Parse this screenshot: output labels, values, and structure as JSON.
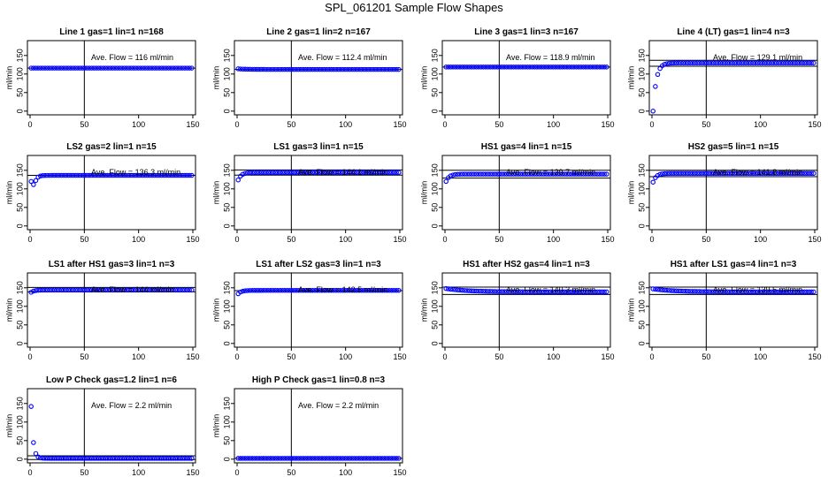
{
  "title": "SPL_061201  Sample Flow Shapes",
  "colors": {
    "points": "#0000ff",
    "axis": "#000000"
  },
  "chart_data": [
    {
      "type": "scatter",
      "title": "Line 1 gas=1 lin=1 n=168",
      "ylabel": "ml/min",
      "annotation": "Ave. Flow =  116  ml/min",
      "xlim": [
        0,
        150
      ],
      "ylim": [
        -10,
        190
      ],
      "xticks": [
        0,
        50,
        100,
        150
      ],
      "yticks": [
        0,
        50,
        100,
        150
      ],
      "vline": 50,
      "hlines": [
        116
      ],
      "model": "flat",
      "flat": 116,
      "start": 116
    },
    {
      "type": "scatter",
      "title": "Line 2 gas=1 lin=2 n=167",
      "ylabel": "ml/min",
      "annotation": "Ave. Flow =  112.4  ml/min",
      "xlim": [
        0,
        150
      ],
      "ylim": [
        -10,
        190
      ],
      "xticks": [
        0,
        50,
        100,
        150
      ],
      "yticks": [
        0,
        50,
        100,
        150
      ],
      "vline": 50,
      "hlines": [
        112.4
      ],
      "model": "flat",
      "flat": 112.4,
      "start": 114
    },
    {
      "type": "scatter",
      "title": "Line 3 gas=1 lin=3 n=167",
      "ylabel": "ml/min",
      "annotation": "Ave. Flow =  118.9  ml/min",
      "xlim": [
        0,
        150
      ],
      "ylim": [
        -10,
        190
      ],
      "xticks": [
        0,
        50,
        100,
        150
      ],
      "yticks": [
        0,
        50,
        100,
        150
      ],
      "vline": 50,
      "hlines": [
        118.9
      ],
      "model": "flat",
      "flat": 118.9,
      "start": 118.9
    },
    {
      "type": "scatter",
      "title": "Line 4 (LT) gas=1 lin=4 n=3",
      "ylabel": "ml/min",
      "annotation": "Ave. Flow =  129.1  ml/min",
      "xlim": [
        0,
        150
      ],
      "ylim": [
        -10,
        190
      ],
      "xticks": [
        0,
        50,
        100,
        150
      ],
      "yticks": [
        0,
        50,
        100,
        150
      ],
      "vline": 50,
      "hlines": [
        121,
        137
      ],
      "model": "rise",
      "flat": 130,
      "start": 0
    },
    {
      "type": "scatter",
      "title": "LS2 gas=2 lin=1 n=15",
      "ylabel": "ml/min",
      "annotation": "Ave. Flow =  136.3  ml/min",
      "xlim": [
        0,
        150
      ],
      "ylim": [
        -10,
        190
      ],
      "xticks": [
        0,
        50,
        100,
        150
      ],
      "yticks": [
        0,
        50,
        100,
        150
      ],
      "vline": 50,
      "hlines": [
        136.3
      ],
      "model": "dip",
      "flat": 136.3,
      "start": 120
    },
    {
      "type": "scatter",
      "title": "LS1 gas=3 lin=1 n=15",
      "ylabel": "ml/min",
      "annotation": "Ave. Flow =  144.1  ml/min",
      "xlim": [
        0,
        150
      ],
      "ylim": [
        -10,
        190
      ],
      "xticks": [
        0,
        50,
        100,
        150
      ],
      "yticks": [
        0,
        50,
        100,
        150
      ],
      "vline": 50,
      "hlines": [
        137,
        151
      ],
      "model": "rise",
      "flat": 144.1,
      "start": 124
    },
    {
      "type": "scatter",
      "title": "HS1 gas=4 lin=1 n=15",
      "ylabel": "ml/min",
      "annotation": "Ave. Flow =  139.7  ml/min",
      "xlim": [
        0,
        150
      ],
      "ylim": [
        -10,
        190
      ],
      "xticks": [
        0,
        50,
        100,
        150
      ],
      "yticks": [
        0,
        50,
        100,
        150
      ],
      "vline": 50,
      "hlines": [
        129,
        150
      ],
      "model": "rise",
      "flat": 139.7,
      "start": 120
    },
    {
      "type": "scatter",
      "title": "HS2 gas=5 lin=1 n=15",
      "ylabel": "ml/min",
      "annotation": "Ave. Flow =  141.8  ml/min",
      "xlim": [
        0,
        150
      ],
      "ylim": [
        -10,
        190
      ],
      "xticks": [
        0,
        50,
        100,
        150
      ],
      "yticks": [
        0,
        50,
        100,
        150
      ],
      "vline": 50,
      "hlines": [
        133,
        150
      ],
      "model": "rise",
      "flat": 141.8,
      "start": 118
    },
    {
      "type": "scatter",
      "title": "LS1 after HS1 gas=3 lin=1 n=3",
      "ylabel": "ml/min",
      "annotation": "Ave. Flow =  144  ml/min",
      "xlim": [
        0,
        150
      ],
      "ylim": [
        -10,
        190
      ],
      "xticks": [
        0,
        50,
        100,
        150
      ],
      "yticks": [
        0,
        50,
        100,
        150
      ],
      "vline": 50,
      "hlines": [
        139,
        151
      ],
      "model": "rise",
      "flat": 144,
      "start": 138
    },
    {
      "type": "scatter",
      "title": "LS1 after LS2 gas=3 lin=1 n=3",
      "ylabel": "ml/min",
      "annotation": "Ave. Flow =  142.5  ml/min",
      "xlim": [
        0,
        150
      ],
      "ylim": [
        -10,
        190
      ],
      "xticks": [
        0,
        50,
        100,
        150
      ],
      "yticks": [
        0,
        50,
        100,
        150
      ],
      "vline": 50,
      "hlines": [
        142.5
      ],
      "model": "rise",
      "flat": 143,
      "start": 134
    },
    {
      "type": "scatter",
      "title": "HS1 after HS2 gas=4 lin=1 n=3",
      "ylabel": "ml/min",
      "annotation": "Ave. Flow =  140.3  ml/min",
      "xlim": [
        0,
        150
      ],
      "ylim": [
        -10,
        190
      ],
      "xticks": [
        0,
        50,
        100,
        150
      ],
      "yticks": [
        0,
        50,
        100,
        150
      ],
      "vline": 50,
      "hlines": [
        132,
        152
      ],
      "model": "fall",
      "flat": 139,
      "start": 148
    },
    {
      "type": "scatter",
      "title": "HS1 after LS1 gas=4 lin=1 n=3",
      "ylabel": "ml/min",
      "annotation": "Ave. Flow =  139.5  ml/min",
      "xlim": [
        0,
        150
      ],
      "ylim": [
        -10,
        190
      ],
      "xticks": [
        0,
        50,
        100,
        150
      ],
      "yticks": [
        0,
        50,
        100,
        150
      ],
      "vline": 50,
      "hlines": [
        132,
        152
      ],
      "model": "fall",
      "flat": 139,
      "start": 147
    },
    {
      "type": "scatter",
      "title": "Low P Check gas=1.2 lin=1 n=6",
      "ylabel": "ml/min",
      "annotation": "Ave. Flow =  2.2  ml/min",
      "xlim": [
        0,
        150
      ],
      "ylim": [
        -10,
        190
      ],
      "xticks": [
        0,
        50,
        100,
        150
      ],
      "yticks": [
        0,
        50,
        100,
        150
      ],
      "vline": 50,
      "hlines": [
        -1,
        9
      ],
      "model": "decay",
      "flat": 2.2,
      "start": 142
    },
    {
      "type": "scatter",
      "title": "High P Check gas=1 lin=0.8 n=3",
      "ylabel": "ml/min",
      "annotation": "Ave. Flow =  2.2  ml/min",
      "xlim": [
        0,
        150
      ],
      "ylim": [
        -10,
        190
      ],
      "xticks": [
        0,
        50,
        100,
        150
      ],
      "yticks": [
        0,
        50,
        100,
        150
      ],
      "vline": 50,
      "hlines": [
        2.2
      ],
      "model": "flat",
      "flat": 2.2,
      "start": 2.2
    }
  ]
}
